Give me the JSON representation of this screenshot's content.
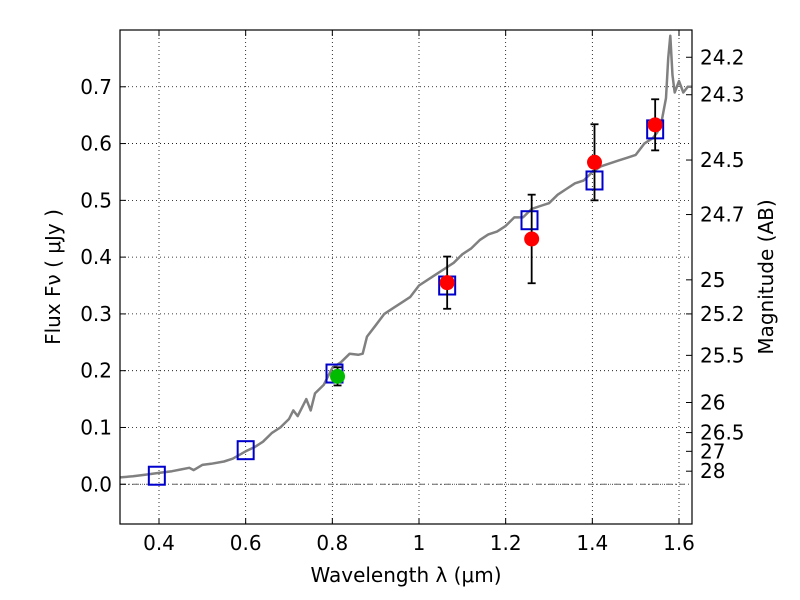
{
  "chart_data": {
    "type": "line",
    "title": "",
    "xlabel": "Wavelength  λ (μm)",
    "ylabel": "Flux  Fν  ( μJy )",
    "ylabel_right": "Magnitude (AB)",
    "xlim": [
      0.31,
      1.63
    ],
    "ylim": [
      -0.07,
      0.8
    ],
    "grid": true,
    "x_ticks": [
      0.4,
      0.6,
      0.8,
      1.0,
      1.2,
      1.4,
      1.6
    ],
    "x_tick_labels": [
      "0.4",
      "0.6",
      "0.8",
      "1",
      "1.2",
      "1.4",
      "1.6"
    ],
    "y_ticks": [
      0.0,
      0.1,
      0.2,
      0.3,
      0.4,
      0.5,
      0.6,
      0.7
    ],
    "y_tick_labels": [
      "0.0",
      "0.1",
      "0.2",
      "0.3",
      "0.4",
      "0.5",
      "0.6",
      "0.7"
    ],
    "right_ticks": [
      {
        "label": "24.2",
        "flux": 0.752
      },
      {
        "label": "24.3",
        "flux": 0.686
      },
      {
        "label": "24.5",
        "flux": 0.571
      },
      {
        "label": "24.7",
        "flux": 0.475
      },
      {
        "label": "25",
        "flux": 0.36
      },
      {
        "label": "25.2",
        "flux": 0.3
      },
      {
        "label": "25.5",
        "flux": 0.227
      },
      {
        "label": "26",
        "flux": 0.144
      },
      {
        "label": "26.5",
        "flux": 0.091
      },
      {
        "label": "27",
        "flux": 0.058
      },
      {
        "label": "28",
        "flux": 0.023
      }
    ],
    "series": [
      {
        "name": "model spectrum",
        "kind": "line",
        "color": "#808080",
        "x": [
          0.31,
          0.34,
          0.37,
          0.4,
          0.43,
          0.45,
          0.47,
          0.48,
          0.5,
          0.52,
          0.55,
          0.57,
          0.6,
          0.62,
          0.64,
          0.66,
          0.68,
          0.7,
          0.71,
          0.72,
          0.73,
          0.74,
          0.75,
          0.76,
          0.78,
          0.8,
          0.82,
          0.84,
          0.86,
          0.87,
          0.88,
          0.9,
          0.92,
          0.94,
          0.96,
          0.98,
          1.0,
          1.02,
          1.04,
          1.06,
          1.08,
          1.1,
          1.12,
          1.14,
          1.16,
          1.18,
          1.2,
          1.22,
          1.24,
          1.26,
          1.28,
          1.3,
          1.32,
          1.34,
          1.36,
          1.38,
          1.4,
          1.42,
          1.44,
          1.46,
          1.48,
          1.5,
          1.52,
          1.54,
          1.55,
          1.56,
          1.57,
          1.575,
          1.58,
          1.585,
          1.59,
          1.6,
          1.61,
          1.62,
          1.63
        ],
        "y": [
          0.012,
          0.014,
          0.017,
          0.02,
          0.023,
          0.026,
          0.029,
          0.025,
          0.034,
          0.036,
          0.04,
          0.045,
          0.058,
          0.065,
          0.075,
          0.09,
          0.1,
          0.115,
          0.13,
          0.12,
          0.135,
          0.15,
          0.13,
          0.16,
          0.175,
          0.205,
          0.215,
          0.23,
          0.228,
          0.23,
          0.26,
          0.28,
          0.3,
          0.31,
          0.32,
          0.33,
          0.35,
          0.36,
          0.37,
          0.38,
          0.39,
          0.405,
          0.415,
          0.43,
          0.44,
          0.445,
          0.455,
          0.47,
          0.47,
          0.485,
          0.49,
          0.495,
          0.51,
          0.52,
          0.53,
          0.535,
          0.55,
          0.56,
          0.565,
          0.57,
          0.575,
          0.58,
          0.6,
          0.61,
          0.62,
          0.64,
          0.68,
          0.75,
          0.79,
          0.72,
          0.69,
          0.71,
          0.69,
          0.7,
          0.7
        ]
      },
      {
        "name": "model photometry",
        "kind": "open-square",
        "color": "#0000cc",
        "x": [
          0.395,
          0.6,
          0.805,
          1.065,
          1.255,
          1.405,
          1.545
        ],
        "y": [
          0.015,
          0.06,
          0.195,
          0.35,
          0.465,
          0.535,
          0.625
        ]
      },
      {
        "name": "observed (red)",
        "kind": "point-errorbar",
        "color": "#ff0000",
        "x": [
          1.065,
          1.26,
          1.405,
          1.545
        ],
        "y": [
          0.355,
          0.432,
          0.567,
          0.633
        ],
        "yerr": [
          0.046,
          0.078,
          0.067,
          0.045
        ]
      },
      {
        "name": "observed (green)",
        "kind": "point-errorbar",
        "color": "#00bb00",
        "x": [
          0.812
        ],
        "y": [
          0.19
        ],
        "yerr": [
          0.016
        ]
      }
    ]
  }
}
